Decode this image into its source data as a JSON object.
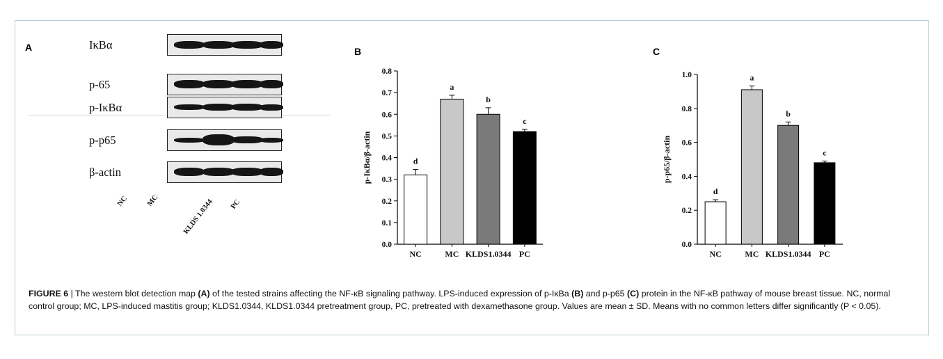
{
  "figure": {
    "caption_label": "FIGURE 6",
    "caption_separator": " | ",
    "caption_parts": [
      {
        "text": "The western blot detection map ",
        "bold": false
      },
      {
        "text": "(A)",
        "bold": true
      },
      {
        "text": " of the tested strains affecting the NF-κB signaling pathway. LPS-induced expression of p-IκBa ",
        "bold": false
      },
      {
        "text": "(B)",
        "bold": true
      },
      {
        "text": " and p-p65 ",
        "bold": false
      },
      {
        "text": "(C)",
        "bold": true
      },
      {
        "text": " protein in the NF-κB pathway of mouse breast tissue. NC, normal control group; MC, LPS-induced mastitis group; KLDS1.0344, KLDS1.0344 pretreatment group, PC, pretreated with dexamethasone group. Values are mean ± SD. Means with no common letters differ significantly (P < 0.05).",
        "bold": false
      }
    ]
  },
  "panel_a": {
    "letter": "A",
    "rows": [
      "IκBα",
      "p-65",
      "p-IκBα",
      "p-p65",
      "β-actin"
    ],
    "lanes": [
      "NC",
      "MC",
      "KLDS 1.0344",
      "PC"
    ]
  },
  "chart_data": [
    {
      "type": "bar",
      "panel_letter": "B",
      "title": "",
      "xlabel": "",
      "ylabel": "p-IκBα/β-actin",
      "categories": [
        "NC",
        "MC",
        "KLDS1.0344",
        "PC"
      ],
      "values": [
        0.32,
        0.67,
        0.6,
        0.52
      ],
      "errors": [
        0.025,
        0.018,
        0.03,
        0.01
      ],
      "significance_letters": [
        "d",
        "a",
        "b",
        "c"
      ],
      "ylim": [
        0.0,
        0.8
      ],
      "yticks": [
        "0.0",
        "0.1",
        "0.2",
        "0.3",
        "0.4",
        "0.5",
        "0.6",
        "0.7",
        "0.8"
      ],
      "bar_colors": [
        "#ffffff",
        "#c8c8c8",
        "#7a7a7a",
        "#000000"
      ]
    },
    {
      "type": "bar",
      "panel_letter": "C",
      "title": "",
      "xlabel": "",
      "ylabel": "p-p65/β-actin",
      "categories": [
        "NC",
        "MC",
        "KLDS1.0344",
        "PC"
      ],
      "values": [
        0.25,
        0.91,
        0.7,
        0.48
      ],
      "errors": [
        0.012,
        0.022,
        0.02,
        0.01
      ],
      "significance_letters": [
        "d",
        "a",
        "b",
        "c"
      ],
      "ylim": [
        0.0,
        1.0
      ],
      "yticks": [
        "0.0",
        "0.2",
        "0.4",
        "0.6",
        "0.8",
        "1.0"
      ],
      "bar_colors": [
        "#ffffff",
        "#c8c8c8",
        "#7a7a7a",
        "#000000"
      ]
    }
  ]
}
